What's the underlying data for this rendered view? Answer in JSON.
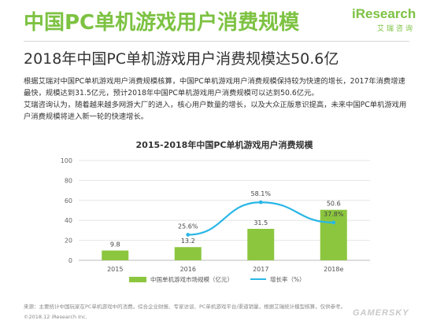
{
  "header": {
    "title": "中国PC单机游戏用户消费规模",
    "subtitle": "2018年中国PC单机游戏用户消费规模达50.6亿"
  },
  "logo": {
    "word": "iResearch",
    "cn": "艾瑞咨询"
  },
  "body": {
    "paragraph1": "根据艾瑞对中国PC单机游戏用户消费规模核算，中国PC单机游戏用户消费规模保持较为快速的增长，2017年消费增速最快，规模达到31.5亿元，预计2018年中国PC单机游戏用户消费规模可以达到50.6亿元。",
    "paragraph2": "艾瑞咨询认为，随着越来越多网游大厂的进入，核心用户数量的增长，以及大众正版意识提高，未来中国PC单机游戏用户消费规模将进入新一轮的快速增长。"
  },
  "chart_data": {
    "type": "bar",
    "title": "2015-2018年中国PC单机游戏用户消费规模",
    "categories": [
      "2015",
      "2016",
      "2017",
      "2018e"
    ],
    "series": [
      {
        "name": "中国单机游戏市场规模（亿元）",
        "type": "bar",
        "values": [
          9.8,
          13.2,
          31.5,
          50.6
        ],
        "labels": [
          "9.8",
          "13.2",
          "31.5",
          "50.6"
        ],
        "color": "#8cc63f"
      },
      {
        "name": "增长率（%）",
        "type": "line",
        "values": [
          null,
          25.6,
          58.1,
          37.8
        ],
        "labels": [
          "",
          "25.6%",
          "58.1%",
          "37.8%"
        ],
        "color": "#29b6e6"
      }
    ],
    "yticks": [
      "0",
      "20",
      "40",
      "60",
      "80",
      "100"
    ],
    "ylim": [
      0,
      100
    ],
    "y2lim": [
      0,
      100
    ],
    "grid": true,
    "legend": "bottom"
  },
  "footer": {
    "source": "来源：主要统计中国玩家在PC单机游戏中的消费。综合企业财报、专家访谈、PC单机游戏平台/渠道销量，根据艾瑞统计模型核算，仅供参考。",
    "copyright": "©2018.12 iResearch Inc.",
    "watermark": "GAMERSKY"
  }
}
